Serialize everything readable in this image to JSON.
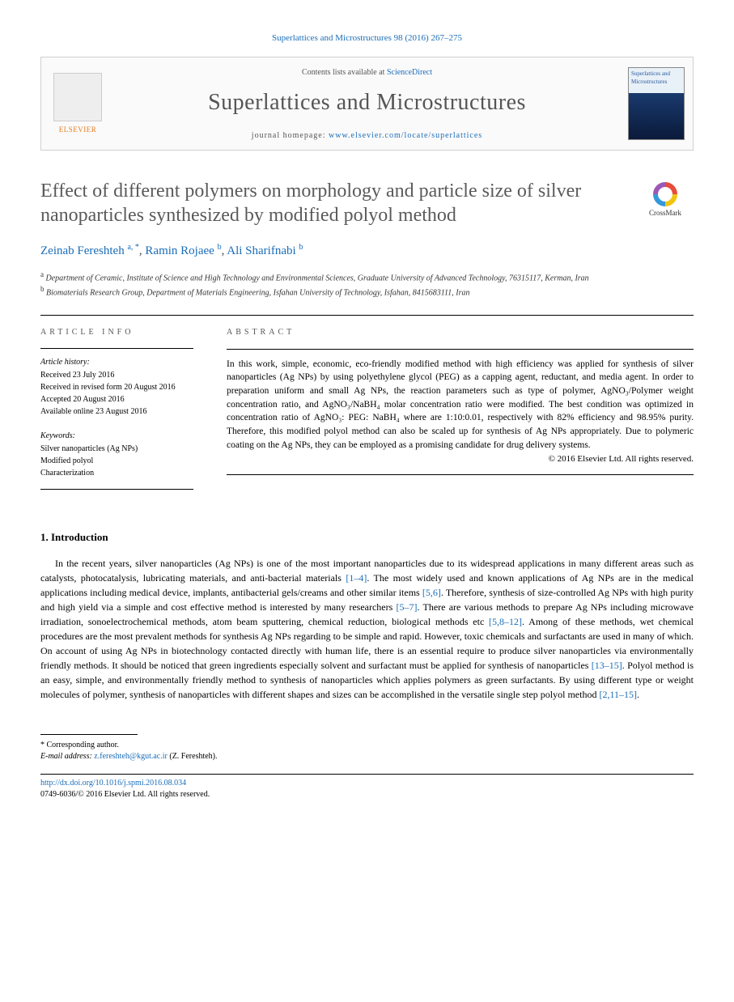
{
  "citation": "Superlattices and Microstructures 98 (2016) 267–275",
  "header": {
    "contents_prefix": "Contents lists available at ",
    "contents_link": "ScienceDirect",
    "journal": "Superlattices and Microstructures",
    "homepage_prefix": "journal homepage: ",
    "homepage_url": "www.elsevier.com/locate/superlattices",
    "elsevier": "ELSEVIER",
    "cover_text": "Superlattices and Microstructures"
  },
  "title": "Effect of different polymers on morphology and particle size of silver nanoparticles synthesized by modified polyol method",
  "crossmark": "CrossMark",
  "authors_html": "Zeinab Fereshteh <sup>a, *</sup>, Ramin Rojaee <sup>b</sup>, Ali Sharifnabi <sup>b</sup>",
  "authors": [
    {
      "name": "Zeinab Fereshteh",
      "aff": "a, *"
    },
    {
      "name": "Ramin Rojaee",
      "aff": "b"
    },
    {
      "name": "Ali Sharifnabi",
      "aff": "b"
    }
  ],
  "affiliations": [
    {
      "sup": "a",
      "text": "Department of Ceramic, Institute of Science and High Technology and Environmental Sciences, Graduate University of Advanced Technology, 76315117, Kerman, Iran"
    },
    {
      "sup": "b",
      "text": "Biomaterials Research Group, Department of Materials Engineering, Isfahan University of Technology, Isfahan, 8415683111, Iran"
    }
  ],
  "info": {
    "label": "ARTICLE INFO",
    "history_label": "Article history:",
    "history": [
      "Received 23 July 2016",
      "Received in revised form 20 August 2016",
      "Accepted 20 August 2016",
      "Available online 23 August 2016"
    ],
    "keywords_label": "Keywords:",
    "keywords": [
      "Silver nanoparticles (Ag NPs)",
      "Modified polyol",
      "Characterization"
    ]
  },
  "abstract": {
    "label": "ABSTRACT",
    "body": "In this work, simple, economic, eco-friendly modified method with high efficiency was applied for synthesis of silver nanoparticles (Ag NPs) by using polyethylene glycol (PEG) as a capping agent, reductant, and media agent. In order to preparation uniform and small Ag NPs, the reaction parameters such as type of polymer, AgNO₃/Polymer weight concentration ratio, and AgNO₃/NaBH₄ molar concentration ratio were modified. The best condition was optimized in concentration ratio of AgNO₃: PEG: NaBH₄ where are 1:10:0.01, respectively with 82% efficiency and 98.95% purity. Therefore, this modified polyol method can also be scaled up for synthesis of Ag NPs appropriately. Due to polymeric coating on the Ag NPs, they can be employed as a promising candidate for drug delivery systems.",
    "copyright": "© 2016 Elsevier Ltd. All rights reserved."
  },
  "intro": {
    "heading": "1. Introduction",
    "paragraph": "In the recent years, silver nanoparticles (Ag NPs) is one of the most important nanoparticles due to its widespread applications in many different areas such as catalysts, photocatalysis, lubricating materials, and anti-bacterial materials [1–4]. The most widely used and known applications of Ag NPs are in the medical applications including medical device, implants, antibacterial gels/creams and other similar items [5,6]. Therefore, synthesis of size-controlled Ag NPs with high purity and high yield via a simple and cost effective method is interested by many researchers [5–7]. There are various methods to prepare Ag NPs including microwave irradiation, sonoelectrochemical methods, atom beam sputtering, chemical reduction, biological methods etc [5,8–12]. Among of these methods, wet chemical procedures are the most prevalent methods for synthesis Ag NPs regarding to be simple and rapid. However, toxic chemicals and surfactants are used in many of which. On account of using Ag NPs in biotechnology contacted directly with human life, there is an essential require to produce silver nanoparticles via environmentally friendly methods. It should be noticed that green ingredients especially solvent and surfactant must be applied for synthesis of nanoparticles [13–15]. Polyol method is an easy, simple, and environmentally friendly method to synthesis of nanoparticles which applies polymers as green surfactants. By using different type or weight molecules of polymer, synthesis of nanoparticles with different shapes and sizes can be accomplished in the versatile single step polyol method [2,11–15].",
    "refs": [
      "[1–4]",
      "[5,6]",
      "[5–7]",
      "[5,8–12]",
      "[13–15]",
      "[2,11–15]"
    ]
  },
  "footer": {
    "corr_label": "* Corresponding author.",
    "email_label": "E-mail address:",
    "email": "z.fereshteh@kgut.ac.ir",
    "email_person": "(Z. Fereshteh).",
    "doi": "http://dx.doi.org/10.1016/j.spmi.2016.08.034",
    "issn": "0749-6036/© 2016 Elsevier Ltd. All rights reserved."
  }
}
